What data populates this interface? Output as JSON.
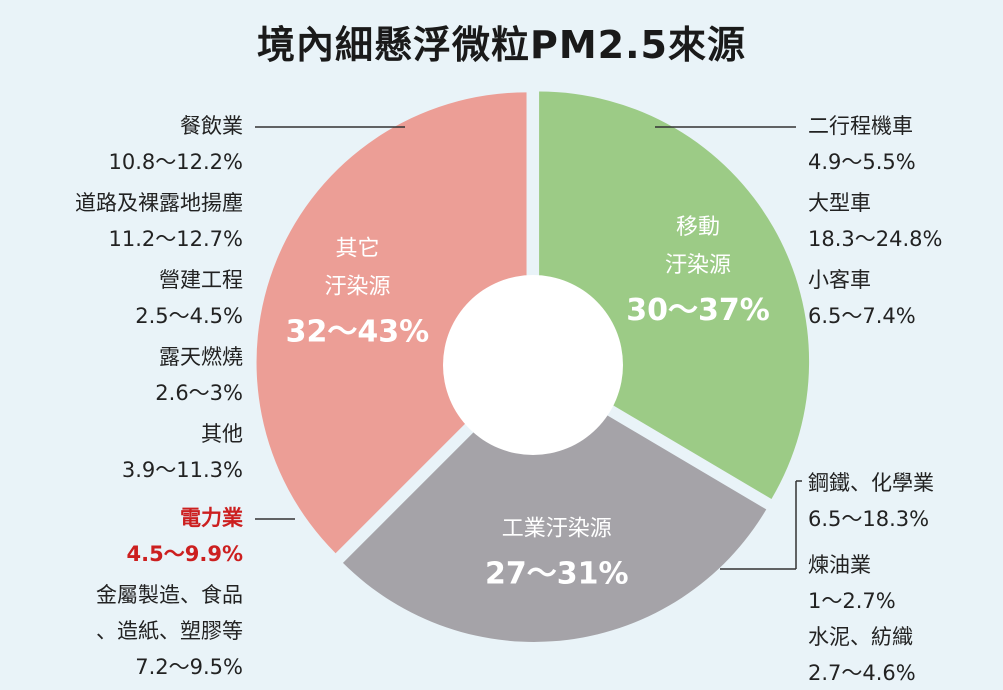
{
  "chart_data": {
    "type": "pie",
    "style": "donut",
    "title": "境內細懸浮微粒PM2.5來源",
    "segments": [
      {
        "key": "mobile",
        "name_lines": [
          "移動",
          "汙染源"
        ],
        "range": "30～37%",
        "value_range": [
          30,
          37
        ],
        "color": "#9ccb86",
        "sub_sources": [
          {
            "name": "二行程機車",
            "range": "4.9～5.5%"
          },
          {
            "name": "大型車",
            "range": "18.3～24.8%"
          },
          {
            "name": "小客車",
            "range": "6.5～7.4%"
          }
        ]
      },
      {
        "key": "industrial",
        "name_lines": [
          "工業汙染源"
        ],
        "range": "27～31%",
        "value_range": [
          27,
          31
        ],
        "color": "#a5a3a8",
        "sub_sources": [
          {
            "name": "鋼鐵、化學業",
            "range": "6.5～18.3%"
          },
          {
            "name": "煉油業",
            "range": "1～2.7%"
          },
          {
            "name": "水泥、紡織",
            "range": "2.7～4.6%"
          },
          {
            "name": "電力業",
            "range": "4.5～9.9%",
            "highlight": "#cc1f1f"
          },
          {
            "name": "金屬製造、食品、造紙、塑膠等",
            "display_lines": [
              "金屬製造、食品",
              "、造紙、塑膠等"
            ],
            "range": "7.2～9.5%"
          }
        ]
      },
      {
        "key": "other",
        "name_lines": [
          "其它",
          "汙染源"
        ],
        "range": "32～43%",
        "value_range": [
          32,
          43
        ],
        "color": "#ec9e96",
        "sub_sources": [
          {
            "name": "餐飲業",
            "range": "10.8～12.2%"
          },
          {
            "name": "道路及裸露地揚塵",
            "range": "11.2～12.7%"
          },
          {
            "name": "營建工程",
            "range": "2.5～4.5%"
          },
          {
            "name": "露天燃燒",
            "range": "2.6～3%"
          },
          {
            "name": "其他",
            "range": "3.9～11.3%"
          }
        ]
      }
    ]
  }
}
